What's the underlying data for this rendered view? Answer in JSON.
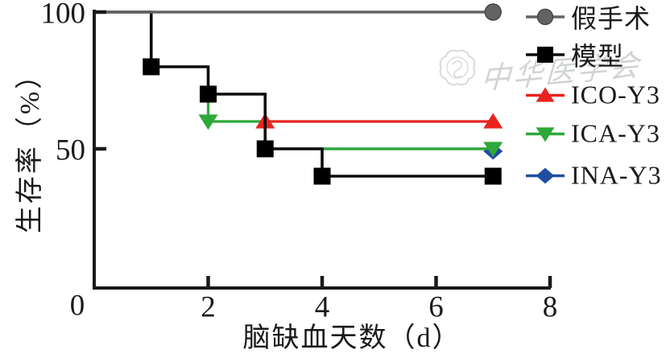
{
  "watermark": {
    "text": "中华医学会"
  },
  "chart_data": {
    "type": "line",
    "subtype": "kaplan-meier-survival-steps",
    "title": "",
    "xlabel": "脑缺血天数（d）",
    "ylabel": "生存率（%）",
    "xlim": [
      0,
      8
    ],
    "ylim": [
      0,
      100
    ],
    "xticks": [
      0,
      2,
      4,
      6,
      8
    ],
    "yticks": [
      0,
      50,
      100
    ],
    "grid": false,
    "legend_position": "right-outside",
    "series": [
      {
        "id": "sham",
        "name": "假手术",
        "color": "#636363",
        "marker": "circle",
        "steps": [
          [
            0,
            100
          ],
          [
            7,
            100
          ]
        ],
        "markers_at": [
          [
            7,
            100
          ]
        ]
      },
      {
        "id": "model",
        "name": "模型",
        "color": "#0c0c0c",
        "marker": "square",
        "steps": [
          [
            0,
            100
          ],
          [
            1,
            100
          ],
          [
            1,
            80
          ],
          [
            2,
            80
          ],
          [
            2,
            70
          ],
          [
            3,
            70
          ],
          [
            3,
            50
          ],
          [
            4,
            50
          ],
          [
            4,
            40
          ],
          [
            7,
            40
          ]
        ],
        "markers_at": [
          [
            1,
            80
          ],
          [
            2,
            70
          ],
          [
            3,
            50
          ],
          [
            4,
            40
          ],
          [
            7,
            40
          ]
        ]
      },
      {
        "id": "ico-y3",
        "name": "ICO-Y3",
        "color": "#e8231e",
        "marker": "triangle-up",
        "steps": [
          [
            3,
            60
          ],
          [
            7,
            60
          ]
        ],
        "markers_at": [
          [
            3,
            60
          ],
          [
            7,
            60
          ]
        ]
      },
      {
        "id": "ica-y3",
        "name": "ICA-Y3",
        "color": "#2ea838",
        "marker": "triangle-down",
        "steps": [
          [
            2,
            70
          ],
          [
            2,
            60
          ],
          [
            3,
            60
          ],
          [
            3,
            50
          ],
          [
            4,
            50
          ],
          [
            7,
            50
          ]
        ],
        "markers_at": [
          [
            2,
            60
          ],
          [
            7,
            50
          ]
        ]
      },
      {
        "id": "ina-y3",
        "name": "INA-Y3",
        "color": "#1f4ea1",
        "marker": "diamond",
        "steps": [
          [
            4,
            50
          ],
          [
            7,
            50
          ]
        ],
        "markers_at": [
          [
            7,
            50
          ]
        ]
      }
    ]
  }
}
